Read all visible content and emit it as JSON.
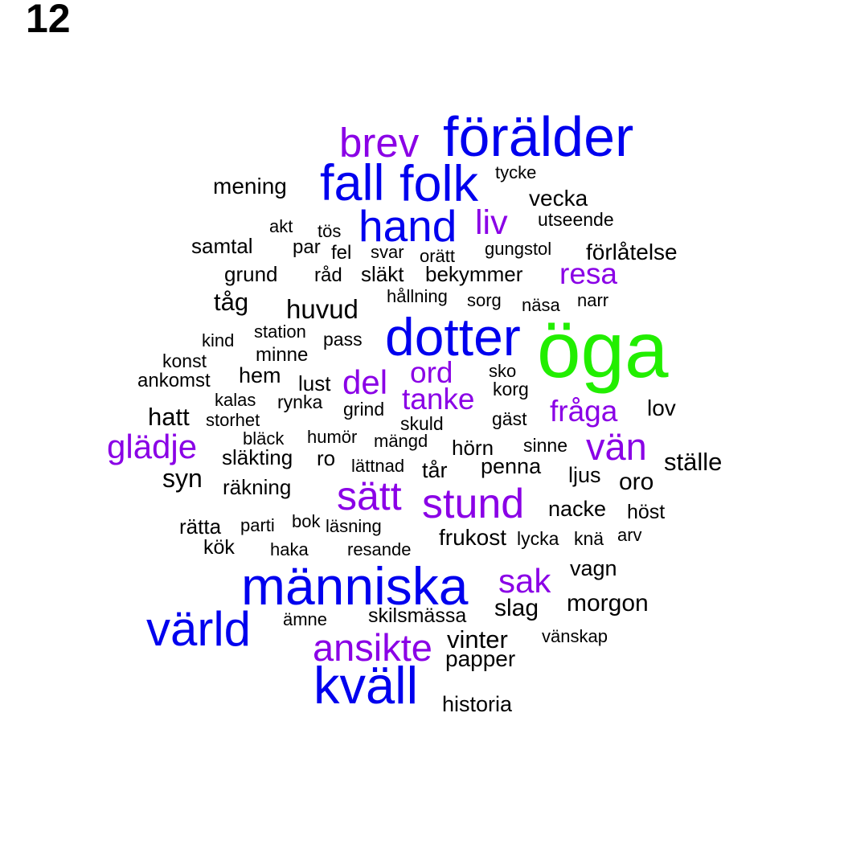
{
  "panel_label": "12",
  "colors": {
    "green": "#22ee00",
    "blue": "#0000ee",
    "purple": "#8a00e6",
    "black": "#000000"
  },
  "words": [
    {
      "text": "öga",
      "color": "green"
    },
    {
      "text": "förälder",
      "color": "blue"
    },
    {
      "text": "dotter",
      "color": "blue"
    },
    {
      "text": "människa",
      "color": "blue"
    },
    {
      "text": "fall",
      "color": "blue"
    },
    {
      "text": "folk",
      "color": "blue"
    },
    {
      "text": "hand",
      "color": "blue"
    },
    {
      "text": "värld",
      "color": "blue"
    },
    {
      "text": "kväll",
      "color": "blue"
    },
    {
      "text": "brev",
      "color": "purple"
    },
    {
      "text": "liv",
      "color": "purple"
    },
    {
      "text": "resa",
      "color": "purple"
    },
    {
      "text": "ord",
      "color": "purple"
    },
    {
      "text": "del",
      "color": "purple"
    },
    {
      "text": "tanke",
      "color": "purple"
    },
    {
      "text": "fråga",
      "color": "purple"
    },
    {
      "text": "glädje",
      "color": "purple"
    },
    {
      "text": "vän",
      "color": "purple"
    },
    {
      "text": "sätt",
      "color": "purple"
    },
    {
      "text": "stund",
      "color": "purple"
    },
    {
      "text": "sak",
      "color": "purple"
    },
    {
      "text": "ansikte",
      "color": "purple"
    },
    {
      "text": "mening",
      "color": "black"
    },
    {
      "text": "tycke",
      "color": "black"
    },
    {
      "text": "vecka",
      "color": "black"
    },
    {
      "text": "utseende",
      "color": "black"
    },
    {
      "text": "akt",
      "color": "black"
    },
    {
      "text": "tös",
      "color": "black"
    },
    {
      "text": "samtal",
      "color": "black"
    },
    {
      "text": "par",
      "color": "black"
    },
    {
      "text": "fel",
      "color": "black"
    },
    {
      "text": "svar",
      "color": "black"
    },
    {
      "text": "orätt",
      "color": "black"
    },
    {
      "text": "gungstol",
      "color": "black"
    },
    {
      "text": "förlåtelse",
      "color": "black"
    },
    {
      "text": "grund",
      "color": "black"
    },
    {
      "text": "råd",
      "color": "black"
    },
    {
      "text": "släkt",
      "color": "black"
    },
    {
      "text": "bekymmer",
      "color": "black"
    },
    {
      "text": "tåg",
      "color": "black"
    },
    {
      "text": "hållning",
      "color": "black"
    },
    {
      "text": "sorg",
      "color": "black"
    },
    {
      "text": "näsa",
      "color": "black"
    },
    {
      "text": "narr",
      "color": "black"
    },
    {
      "text": "huvud",
      "color": "black"
    },
    {
      "text": "station",
      "color": "black"
    },
    {
      "text": "pass",
      "color": "black"
    },
    {
      "text": "kind",
      "color": "black"
    },
    {
      "text": "minne",
      "color": "black"
    },
    {
      "text": "konst",
      "color": "black"
    },
    {
      "text": "ankomst",
      "color": "black"
    },
    {
      "text": "hem",
      "color": "black"
    },
    {
      "text": "lust",
      "color": "black"
    },
    {
      "text": "sko",
      "color": "black"
    },
    {
      "text": "korg",
      "color": "black"
    },
    {
      "text": "kalas",
      "color": "black"
    },
    {
      "text": "rynka",
      "color": "black"
    },
    {
      "text": "grind",
      "color": "black"
    },
    {
      "text": "lov",
      "color": "black"
    },
    {
      "text": "hatt",
      "color": "black"
    },
    {
      "text": "storhet",
      "color": "black"
    },
    {
      "text": "skuld",
      "color": "black"
    },
    {
      "text": "gäst",
      "color": "black"
    },
    {
      "text": "bläck",
      "color": "black"
    },
    {
      "text": "humör",
      "color": "black"
    },
    {
      "text": "mängd",
      "color": "black"
    },
    {
      "text": "hörn",
      "color": "black"
    },
    {
      "text": "sinne",
      "color": "black"
    },
    {
      "text": "släkting",
      "color": "black"
    },
    {
      "text": "ro",
      "color": "black"
    },
    {
      "text": "lättnad",
      "color": "black"
    },
    {
      "text": "tår",
      "color": "black"
    },
    {
      "text": "penna",
      "color": "black"
    },
    {
      "text": "ställe",
      "color": "black"
    },
    {
      "text": "syn",
      "color": "black"
    },
    {
      "text": "ljus",
      "color": "black"
    },
    {
      "text": "oro",
      "color": "black"
    },
    {
      "text": "räkning",
      "color": "black"
    },
    {
      "text": "nacke",
      "color": "black"
    },
    {
      "text": "höst",
      "color": "black"
    },
    {
      "text": "rätta",
      "color": "black"
    },
    {
      "text": "parti",
      "color": "black"
    },
    {
      "text": "bok",
      "color": "black"
    },
    {
      "text": "läsning",
      "color": "black"
    },
    {
      "text": "kök",
      "color": "black"
    },
    {
      "text": "haka",
      "color": "black"
    },
    {
      "text": "resande",
      "color": "black"
    },
    {
      "text": "frukost",
      "color": "black"
    },
    {
      "text": "lycka",
      "color": "black"
    },
    {
      "text": "knä",
      "color": "black"
    },
    {
      "text": "arv",
      "color": "black"
    },
    {
      "text": "vagn",
      "color": "black"
    },
    {
      "text": "slag",
      "color": "black"
    },
    {
      "text": "morgon",
      "color": "black"
    },
    {
      "text": "ämne",
      "color": "black"
    },
    {
      "text": "skilsmässa",
      "color": "black"
    },
    {
      "text": "vinter",
      "color": "black"
    },
    {
      "text": "vänskap",
      "color": "black"
    },
    {
      "text": "papper",
      "color": "black"
    },
    {
      "text": "historia",
      "color": "black"
    }
  ]
}
